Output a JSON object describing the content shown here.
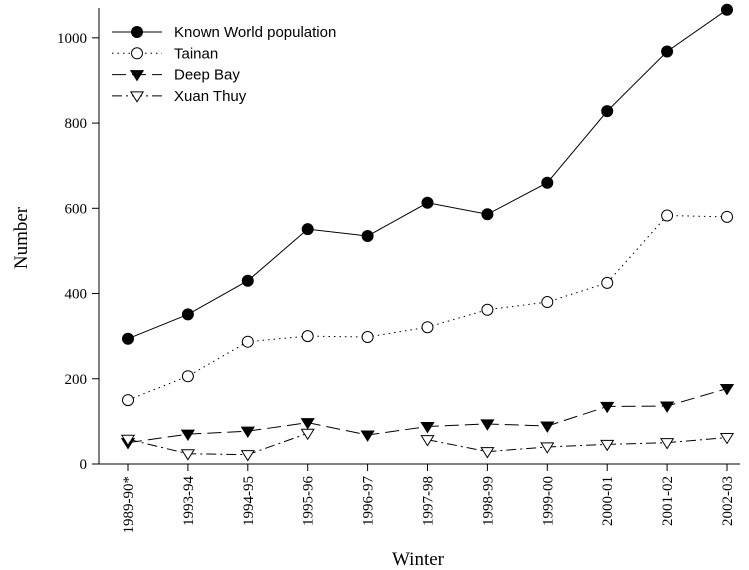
{
  "chart_data": {
    "type": "line",
    "xlabel": "Winter",
    "ylabel": "Number",
    "categories": [
      "1989-90*",
      "1993-94",
      "1994-95",
      "1995-96",
      "1996-97",
      "1997-98",
      "1998-99",
      "1999-00",
      "2000-01",
      "2001-02",
      "2002-03"
    ],
    "ylim": [
      0,
      1070
    ],
    "yticks": [
      0,
      200,
      400,
      600,
      800,
      1000
    ],
    "grid": false,
    "legend_position": "top-left",
    "series": [
      {
        "name": "Known World population",
        "marker": "filled-circle",
        "line": "solid",
        "values": [
          294,
          351,
          430,
          551,
          535,
          613,
          586,
          660,
          828,
          968,
          1066
        ]
      },
      {
        "name": "Tainan",
        "marker": "open-circle",
        "line": "dotted",
        "values": [
          150,
          206,
          287,
          300,
          298,
          321,
          362,
          380,
          425,
          583,
          580
        ]
      },
      {
        "name": "Deep Bay",
        "marker": "filled-triangle-down",
        "line": "long-dash",
        "values": [
          50,
          70,
          77,
          97,
          68,
          88,
          94,
          89,
          135,
          136,
          177
        ]
      },
      {
        "name": "Xuan Thuy",
        "marker": "open-triangle-down",
        "line": "dash-dot",
        "values": [
          58,
          24,
          22,
          72,
          null,
          57,
          29,
          40,
          46,
          50,
          62
        ]
      }
    ]
  }
}
